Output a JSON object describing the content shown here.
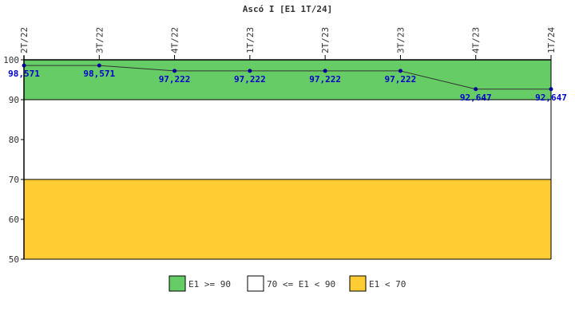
{
  "chart_data": {
    "type": "line",
    "title": "Ascó I [E1 1T/24]",
    "categories": [
      "2T/22",
      "3T/22",
      "4T/22",
      "1T/23",
      "2T/23",
      "3T/23",
      "4T/23",
      "1T/24"
    ],
    "series": [
      {
        "name": "",
        "values": [
          98.571,
          98.571,
          97.222,
          97.222,
          97.222,
          97.222,
          92.647,
          92.647
        ]
      }
    ],
    "data_labels": [
      "98,571",
      "98,571",
      "97,222",
      "97,222",
      "97,222",
      "97,222",
      "92,647",
      "92,647"
    ],
    "ylim": [
      50,
      100
    ],
    "yticks": [
      50,
      60,
      70,
      80,
      90,
      100
    ],
    "bands": [
      {
        "from": 90,
        "to": 100,
        "color": "#66cc66",
        "label": "E1 >= 90"
      },
      {
        "from": 70,
        "to": 90,
        "color": "#ffffff",
        "label": "70 <= E1 < 90"
      },
      {
        "from": 50,
        "to": 70,
        "color": "#ffcc33",
        "label": "E1 < 70"
      }
    ],
    "line_color": "#333333",
    "marker_color": "#000099",
    "label_color": "#0000cc",
    "legend_position": "bottom"
  }
}
